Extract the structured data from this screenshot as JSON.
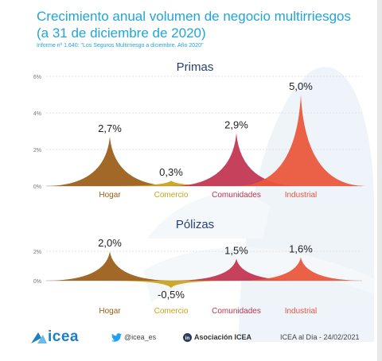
{
  "header": {
    "title_line1": "Crecimiento anual volumen de negocio multirriesgos",
    "title_line2": "(a 31 de diciembre de 2020)",
    "subtitle": "Informe nº 1.640: \"Los Seguros Multirriesgo a diciembre. Año 2020\""
  },
  "footer": {
    "logo_text": "icea",
    "twitter": "@icea_es",
    "linkedin": "Asociación ICEA",
    "date_text": "ICEA al Día - 24/02/2021"
  },
  "colors": {
    "Hogar": "#9a5d18",
    "Comercio": "#c9a21a",
    "Comunidades": "#c2334f",
    "Industrial": "#e9553a"
  },
  "chart_data": [
    {
      "type": "area",
      "title": "Primas",
      "categories": [
        "Hogar",
        "Comercio",
        "Comunidades",
        "Industrial"
      ],
      "values": [
        2.7,
        0.3,
        2.9,
        5.0
      ],
      "value_labels": [
        "2,7%",
        "0,3%",
        "2,9%",
        "5,0%"
      ],
      "y_ticks": [
        0,
        2,
        4,
        6
      ],
      "y_tick_labels": [
        "0%",
        "2%",
        "4%",
        "6%"
      ],
      "ylim": [
        0,
        6
      ],
      "grid": true
    },
    {
      "type": "area",
      "title": "Pólizas",
      "categories": [
        "Hogar",
        "Comercio",
        "Comunidades",
        "Industrial"
      ],
      "values": [
        2.0,
        -0.5,
        1.5,
        1.6
      ],
      "value_labels": [
        "2,0%",
        "-0,5%",
        "1,5%",
        "1,6%"
      ],
      "y_ticks": [
        0,
        2
      ],
      "y_tick_labels": [
        "0%",
        "2%"
      ],
      "ylim": [
        -0.8,
        2.6
      ],
      "grid": true
    }
  ]
}
